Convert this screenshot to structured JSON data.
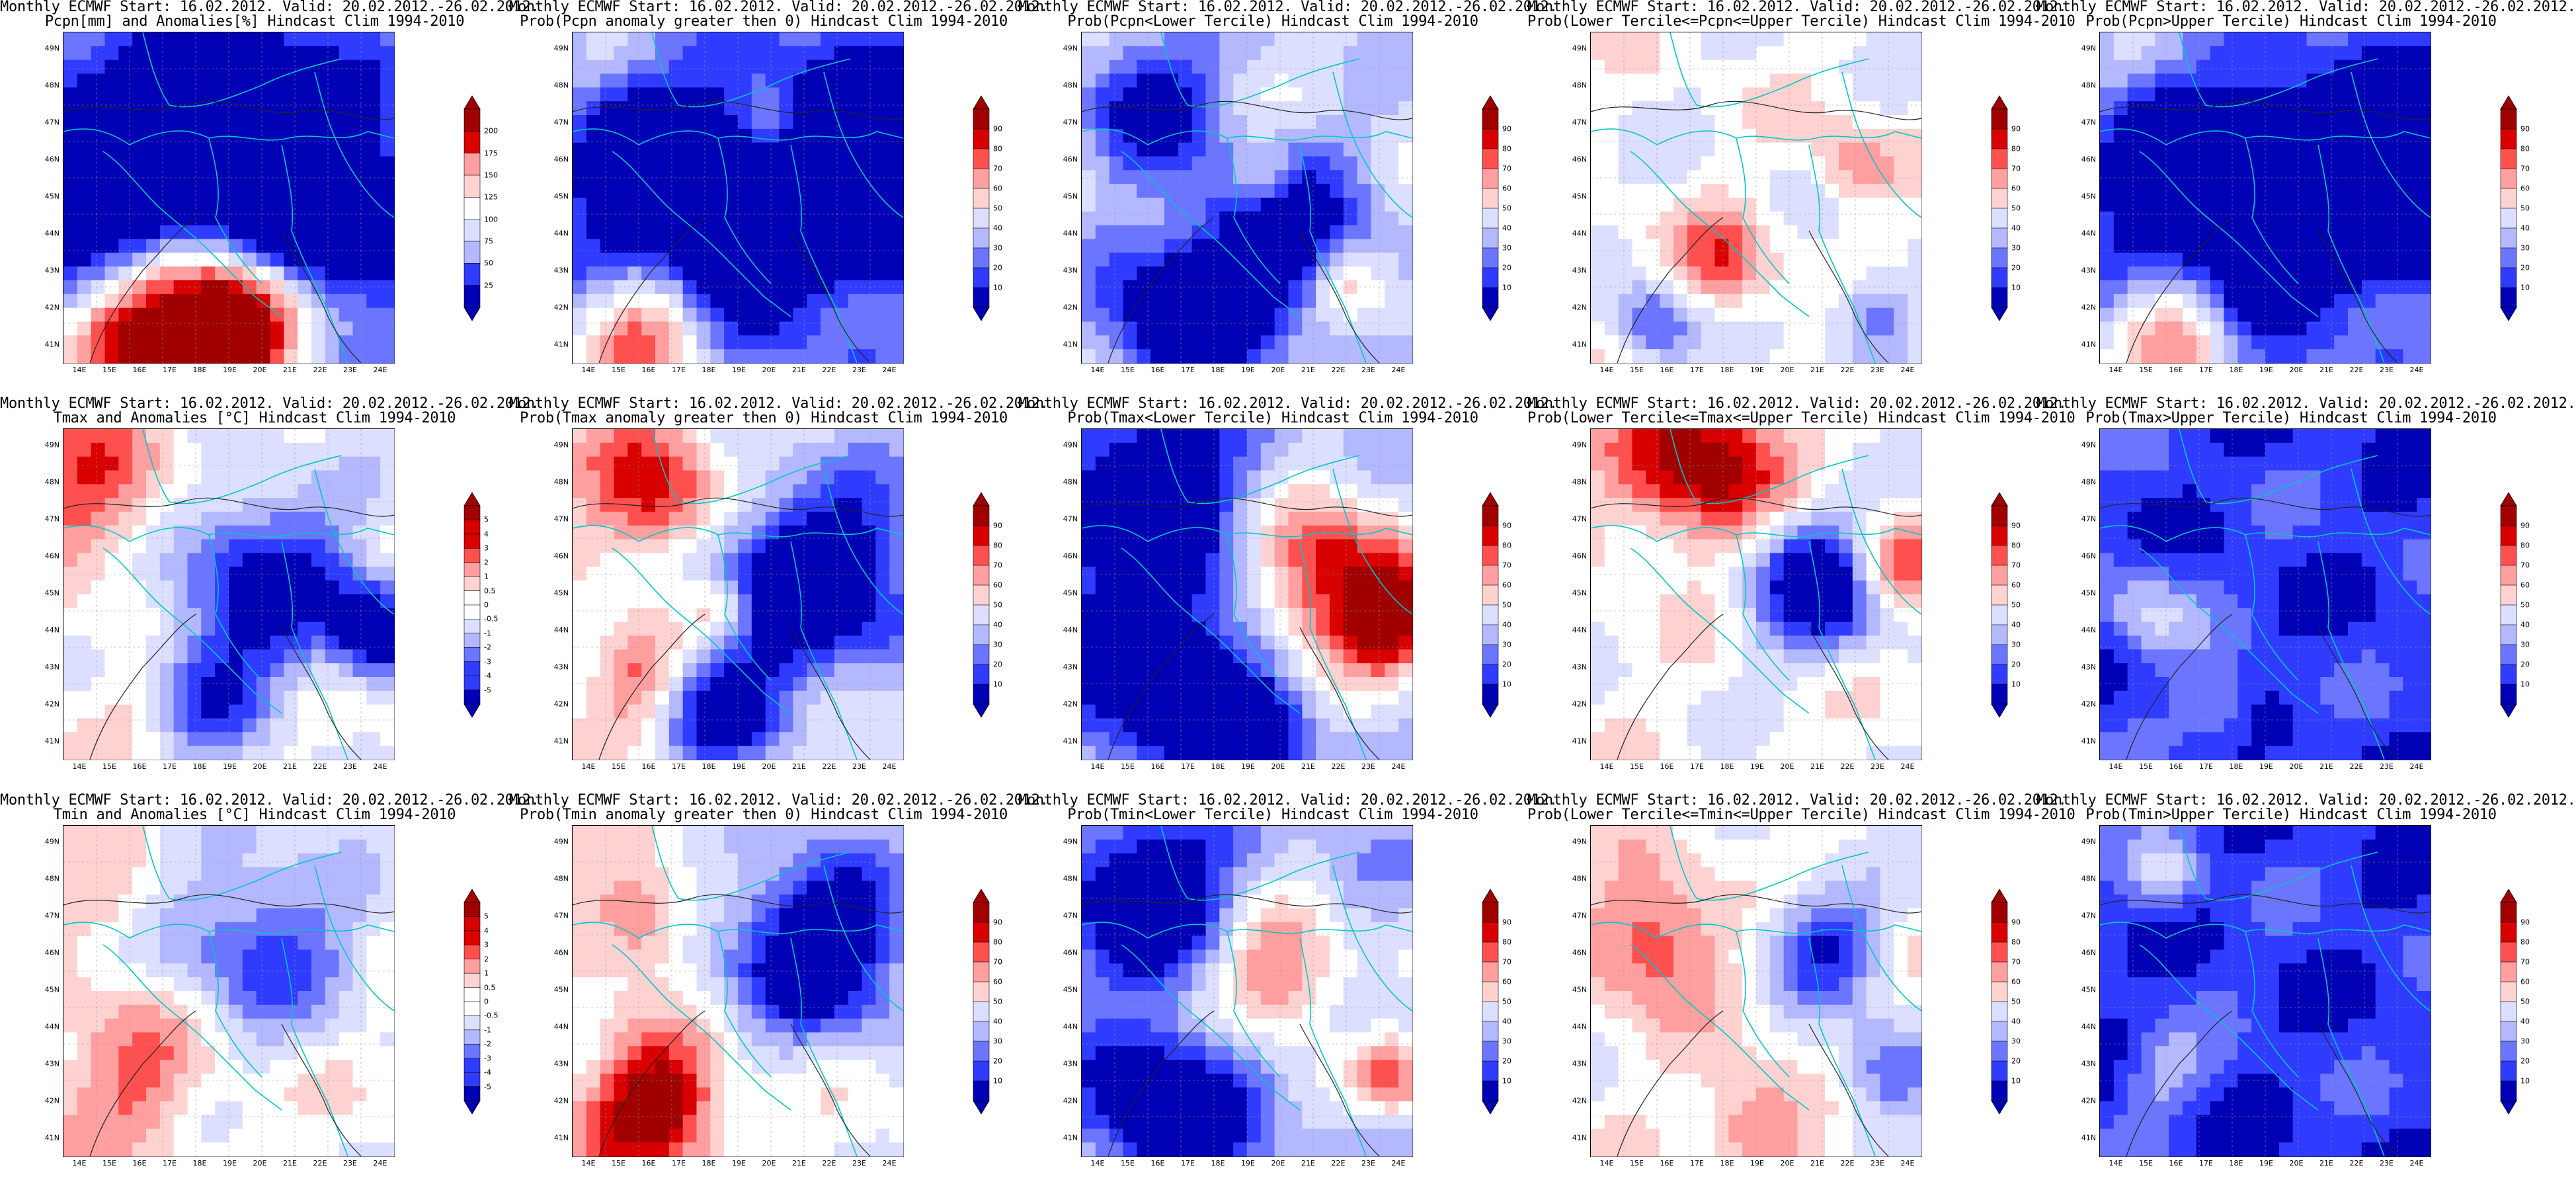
{
  "lon_ticks": [
    "14E",
    "15E",
    "16E",
    "17E",
    "18E",
    "19E",
    "20E",
    "21E",
    "22E",
    "23E",
    "24E"
  ],
  "lat_ticks": [
    "49N",
    "48N",
    "47N",
    "46N",
    "45N",
    "44N",
    "43N",
    "42N",
    "41N"
  ],
  "scales": {
    "pcpn": {
      "labels": [
        "200",
        "175",
        "150",
        "125",
        "100",
        "75",
        "50",
        "25"
      ]
    },
    "prob": {
      "labels": [
        "90",
        "80",
        "70",
        "60",
        "50",
        "40",
        "30",
        "20",
        "10"
      ]
    },
    "temp": {
      "labels": [
        "5",
        "4",
        "3",
        "2",
        "1",
        "0.5",
        "0",
        "-0.5",
        "-1",
        "-2",
        "-3",
        "-4",
        "-5"
      ]
    }
  },
  "colors": {
    "dark_blue": "#0000b4",
    "blue": "#2f3cff",
    "mid_blue": "#6b75ff",
    "light_blue": "#b3b8ff",
    "pale_blue": "#dcdfff",
    "white": "#ffffff",
    "pale_red": "#ffd2d2",
    "light_red": "#ff9f9f",
    "red": "#ff5050",
    "dark_red": "#d80000",
    "deep_red": "#a00000",
    "border_line": "#00c8c8",
    "contour_line": "#222222"
  },
  "panels": [
    {
      "line1": "Monthly ECMWF Start: 16.02.2012. Valid: 20.02.2012.-26.02.2012.",
      "line2": "Pcpn[mm] and Anomalies[%] Hindcast Clim 1994-2010",
      "scale": "pcpn",
      "field": {
        "base": 0.35,
        "hot": [
          [
            0.35,
            0.92,
            0.9,
            0.28
          ],
          [
            0.55,
            0.85,
            0.5,
            0.18
          ]
        ],
        "cold": [
          [
            0.4,
            0.3,
            -0.55,
            0.45
          ],
          [
            0.8,
            0.55,
            -0.5,
            0.3
          ],
          [
            0.15,
            0.5,
            -0.4,
            0.25
          ]
        ]
      }
    },
    {
      "line1": "Monthly ECMWF Start: 16.02.2012. Valid: 20.02.2012.-26.02.2012.",
      "line2": "Prob(Pcpn anomaly greater then 0) Hindcast Clim 1994-2010",
      "scale": "prob",
      "field": {
        "base": 0.3,
        "hot": [
          [
            0.25,
            0.92,
            0.55,
            0.2
          ],
          [
            0.6,
            0.3,
            0.35,
            0.12
          ]
        ],
        "cold": [
          [
            0.5,
            0.55,
            -0.6,
            0.35
          ],
          [
            0.85,
            0.4,
            -0.5,
            0.3
          ],
          [
            0.2,
            0.4,
            -0.4,
            0.2
          ]
        ]
      }
    },
    {
      "line1": "Monthly ECMWF Start: 16.02.2012. Valid: 20.02.2012.-26.02.2012.",
      "line2": "Prob(Pcpn<Lower Tercile) Hindcast Clim 1994-2010",
      "scale": "prob",
      "field": {
        "base": 0.4,
        "hot": [
          [
            0.55,
            0.45,
            0.25,
            0.1
          ],
          [
            0.8,
            0.75,
            0.2,
            0.1
          ]
        ],
        "cold": [
          [
            0.3,
            0.85,
            -0.5,
            0.25
          ],
          [
            0.6,
            0.6,
            -0.45,
            0.25
          ],
          [
            0.2,
            0.2,
            -0.4,
            0.2
          ]
        ]
      }
    },
    {
      "line1": "Monthly ECMWF Start: 16.02.2012. Valid: 20.02.2012.-26.02.2012.",
      "line2": "Prob(Lower Tercile<=Pcpn<=Upper Tercile) Hindcast Clim 1994-2010",
      "scale": "prob",
      "field": {
        "base": 0.48,
        "hot": [
          [
            0.4,
            0.7,
            0.3,
            0.15
          ],
          [
            0.8,
            0.4,
            0.25,
            0.12
          ]
        ],
        "cold": [
          [
            0.2,
            0.88,
            -0.35,
            0.12
          ],
          [
            0.85,
            0.85,
            -0.3,
            0.12
          ]
        ]
      }
    },
    {
      "line1": "Monthly ECMWF Start: 16.02.2012. Valid: 20.02.2012.-26.02.2012.",
      "line2": "Prob(Pcpn>Upper Tercile) Hindcast Clim 1994-2010",
      "scale": "prob",
      "field": {
        "base": 0.3,
        "hot": [
          [
            0.25,
            0.92,
            0.5,
            0.18
          ]
        ],
        "cold": [
          [
            0.5,
            0.55,
            -0.6,
            0.35
          ],
          [
            0.85,
            0.4,
            -0.5,
            0.3
          ],
          [
            0.2,
            0.4,
            -0.4,
            0.2
          ]
        ]
      }
    },
    {
      "line1": "Monthly ECMWF Start: 16.02.2012. Valid: 20.02.2012.-26.02.2012.",
      "line2": "Tmax and Anomalies [°C] Hindcast Clim 1994-2010",
      "scale": "temp",
      "field": {
        "base": 0.5,
        "hot": [
          [
            0.1,
            0.2,
            0.3,
            0.25
          ],
          [
            0.25,
            0.85,
            0.1,
            0.15
          ]
        ],
        "cold": [
          [
            0.6,
            0.45,
            -0.45,
            0.3
          ],
          [
            0.95,
            0.6,
            -0.5,
            0.15
          ],
          [
            0.45,
            0.8,
            -0.3,
            0.2
          ]
        ]
      }
    },
    {
      "line1": "Monthly ECMWF Start: 16.02.2012. Valid: 20.02.2012.-26.02.2012.",
      "line2": "Prob(Tmax anomaly greater then 0) Hindcast Clim 1994-2010",
      "scale": "prob",
      "field": {
        "base": 0.5,
        "hot": [
          [
            0.25,
            0.2,
            0.45,
            0.2
          ],
          [
            0.2,
            0.75,
            0.3,
            0.15
          ],
          [
            0.45,
            0.55,
            0.25,
            0.1
          ]
        ],
        "cold": [
          [
            0.75,
            0.45,
            -0.6,
            0.35
          ],
          [
            0.45,
            0.85,
            -0.4,
            0.2
          ]
        ]
      }
    },
    {
      "line1": "Monthly ECMWF Start: 16.02.2012. Valid: 20.02.2012.-26.02.2012.",
      "line2": "Prob(Tmax<Lower Tercile) Hindcast Clim 1994-2010",
      "scale": "prob",
      "field": {
        "base": 0.35,
        "hot": [
          [
            0.75,
            0.45,
            0.6,
            0.25
          ],
          [
            0.95,
            0.6,
            0.5,
            0.15
          ]
        ],
        "cold": [
          [
            0.2,
            0.2,
            -0.5,
            0.3
          ],
          [
            0.25,
            0.75,
            -0.5,
            0.3
          ],
          [
            0.55,
            0.9,
            -0.3,
            0.15
          ]
        ]
      }
    },
    {
      "line1": "Monthly ECMWF Start: 16.02.2012. Valid: 20.02.2012.-26.02.2012.",
      "line2": "Prob(Lower Tercile<=Tmax<=Upper Tercile) Hindcast Clim 1994-2010",
      "scale": "prob",
      "field": {
        "base": 0.5,
        "hot": [
          [
            0.35,
            0.1,
            0.5,
            0.25
          ],
          [
            0.9,
            0.4,
            0.4,
            0.15
          ]
        ],
        "cold": [
          [
            0.7,
            0.45,
            -0.6,
            0.22
          ]
        ]
      }
    },
    {
      "line1": "Monthly ECMWF Start: 16.02.2012. Valid: 20.02.2012.-26.02.2012.",
      "line2": "Prob(Tmax>Upper Tercile) Hindcast Clim 1994-2010",
      "scale": "prob",
      "field": {
        "base": 0.12,
        "hot": [
          [
            0.15,
            0.55,
            0.25,
            0.15
          ],
          [
            0.35,
            0.85,
            0.2,
            0.12
          ]
        ],
        "cold": []
      }
    },
    {
      "line1": "Monthly ECMWF Start: 16.02.2012. Valid: 20.02.2012.-26.02.2012.",
      "line2": "Tmin and Anomalies [°C] Hindcast Clim 1994-2010",
      "scale": "temp",
      "field": {
        "base": 0.5,
        "hot": [
          [
            0.2,
            0.75,
            0.25,
            0.25
          ],
          [
            0.15,
            0.25,
            0.15,
            0.15
          ]
        ],
        "cold": [
          [
            0.6,
            0.35,
            -0.35,
            0.3
          ]
        ]
      }
    },
    {
      "line1": "Monthly ECMWF Start: 16.02.2012. Valid: 20.02.2012.-26.02.2012.",
      "line2": "Prob(Tmin anomaly greater then 0) Hindcast Clim 1994-2010",
      "scale": "prob",
      "field": {
        "base": 0.5,
        "hot": [
          [
            0.25,
            0.85,
            0.55,
            0.2
          ],
          [
            0.2,
            0.3,
            0.3,
            0.15
          ]
        ],
        "cold": [
          [
            0.75,
            0.35,
            -0.6,
            0.3
          ]
        ]
      }
    },
    {
      "line1": "Monthly ECMWF Start: 16.02.2012. Valid: 20.02.2012.-26.02.2012.",
      "line2": "Prob(Tmin<Lower Tercile) Hindcast Clim 1994-2010",
      "scale": "prob",
      "field": {
        "base": 0.35,
        "hot": [
          [
            0.6,
            0.45,
            0.45,
            0.2
          ],
          [
            0.95,
            0.75,
            0.4,
            0.12
          ]
        ],
        "cold": [
          [
            0.2,
            0.2,
            -0.5,
            0.25
          ],
          [
            0.25,
            0.85,
            -0.5,
            0.25
          ]
        ]
      }
    },
    {
      "line1": "Monthly ECMWF Start: 16.02.2012. Valid: 20.02.2012.-26.02.2012.",
      "line2": "Prob(Lower Tercile<=Tmin<=Upper Tercile) Hindcast Clim 1994-2010",
      "scale": "prob",
      "field": {
        "base": 0.5,
        "hot": [
          [
            0.2,
            0.35,
            0.35,
            0.2
          ],
          [
            0.5,
            0.9,
            0.3,
            0.15
          ]
        ],
        "cold": [
          [
            0.7,
            0.35,
            -0.4,
            0.18
          ],
          [
            0.9,
            0.75,
            -0.35,
            0.15
          ]
        ]
      }
    },
    {
      "line1": "Monthly ECMWF Start: 16.02.2012. Valid: 20.02.2012.-26.02.2012.",
      "line2": "Prob(Tmin>Upper Tercile) Hindcast Clim 1994-2010",
      "scale": "prob",
      "field": {
        "base": 0.12,
        "hot": [
          [
            0.2,
            0.15,
            0.25,
            0.12
          ],
          [
            0.2,
            0.75,
            0.2,
            0.12
          ]
        ],
        "cold": []
      }
    }
  ]
}
